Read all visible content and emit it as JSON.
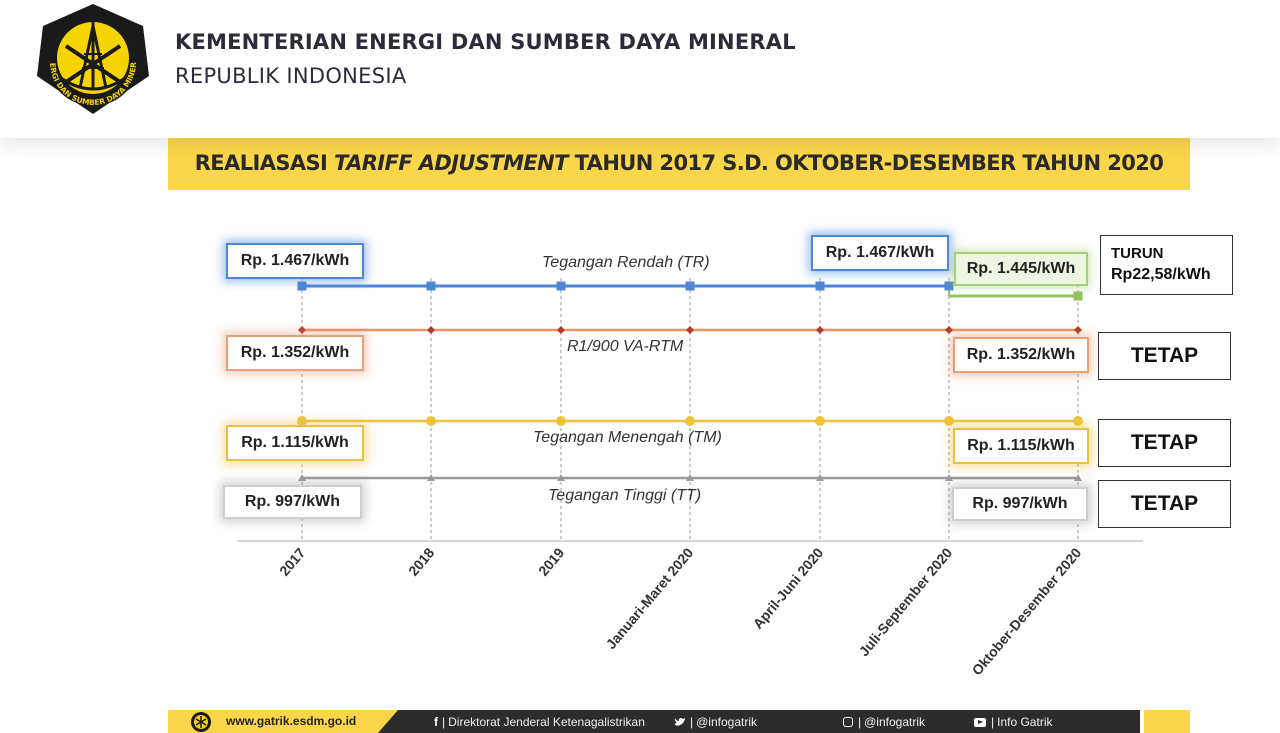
{
  "header": {
    "ministry_name": "KEMENTERIAN ENERGI DAN SUMBER DAYA MINERAL",
    "country": "REPUBLIK INDONESIA",
    "logo_text": "ENERGI DAN SUMBER DAYA MINERAL"
  },
  "slide": {
    "title_prefix": "REALIASASI ",
    "title_emphasis": "TARIFF ADJUSTMENT",
    "title_suffix": " TAHUN 2017 S.D. OKTOBER-DESEMBER TAHUN 2020",
    "colors": {
      "banner": "#fcd64a",
      "tr": "#4e86d6",
      "r1": "#e8946a",
      "tm": "#f0c43a",
      "tt": "#9a9a9a",
      "tr_new": "#94c35e"
    }
  },
  "chart_data": {
    "type": "line",
    "title": "REALIASASI TARIFF ADJUSTMENT TAHUN 2017 S.D. OKTOBER-DESEMBER TAHUN 2020",
    "categories": [
      "2017",
      "2018",
      "2019",
      "Januari-Maret 2020",
      "April-Juni 2020",
      "Juli-September 2020",
      "Oktober-Desember 2020"
    ],
    "unit": "Rp/kWh",
    "series": [
      {
        "name": "Tegangan Rendah (TR)",
        "values": [
          1467,
          1467,
          1467,
          1467,
          1467,
          1467,
          1445
        ],
        "start_label": "Rp. 1.467/kWh",
        "mid_label": "Rp. 1.467/kWh",
        "end_label": "Rp. 1.445/kWh",
        "status_line1": "TURUN",
        "status_line2": "Rp22,58/kWh"
      },
      {
        "name": "R1/900 VA-RTM",
        "values": [
          1352,
          1352,
          1352,
          1352,
          1352,
          1352,
          1352
        ],
        "start_label": "Rp. 1.352/kWh",
        "end_label": "Rp. 1.352/kWh",
        "status": "TETAP"
      },
      {
        "name": "Tegangan Menengah (TM)",
        "values": [
          1115,
          1115,
          1115,
          1115,
          1115,
          1115,
          1115
        ],
        "start_label": "Rp. 1.115/kWh",
        "end_label": "Rp. 1.115/kWh",
        "status": "TETAP"
      },
      {
        "name": "Tegangan Tinggi (TT)",
        "values": [
          997,
          997,
          997,
          997,
          997,
          997,
          997
        ],
        "start_label": "Rp. 997/kWh",
        "end_label": "Rp. 997/kWh",
        "status": "TETAP"
      }
    ]
  },
  "footer": {
    "url": "www.gatrik.esdm.go.id",
    "facebook": "Direktorat Jenderal Ketenagalistrikan",
    "twitter": "@infogatrik",
    "instagram": "@infogatrik",
    "youtube": "Info Gatrik"
  }
}
